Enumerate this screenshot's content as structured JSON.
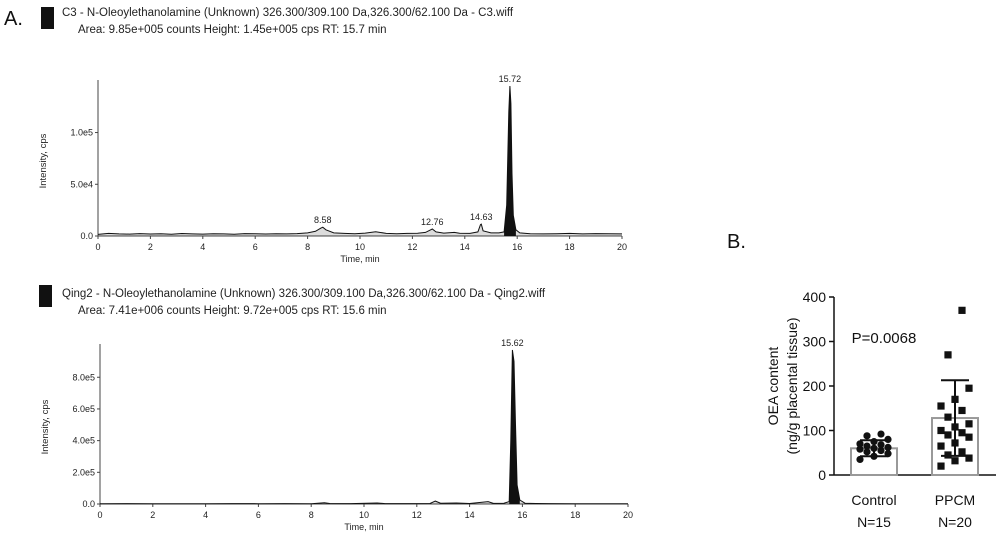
{
  "panel_a_label": "A.",
  "panel_b_label": "B.",
  "colors": {
    "trace": "#111111",
    "axis": "#444444",
    "bar_fill": "#ffffff",
    "bar_stroke": "#999999",
    "marker": "#111111"
  },
  "chart_data": [
    {
      "type": "line",
      "name": "Chromatogram C3",
      "header_title": "C3 - N-Oleoylethanolamine (Unknown) 326.300/309.100 Da,326.300/62.100 Da - C3.wiff",
      "header_sub": "Area: 9.85e+005 counts  Height: 1.45e+005 cps  RT: 15.7 min",
      "xlabel": "Time, min",
      "ylabel": "Intensity, cps",
      "xlim": [
        0,
        20
      ],
      "ylim": [
        0,
        145000
      ],
      "xticks": [
        "0",
        "2",
        "4",
        "6",
        "8",
        "10",
        "12",
        "14",
        "16",
        "18",
        "20"
      ],
      "yticks": [
        {
          "value": 0,
          "label": "0.0"
        },
        {
          "value": 50000,
          "label": "5.0e4"
        },
        {
          "value": 100000,
          "label": "1.0e5"
        }
      ],
      "baseline": [
        [
          0,
          1500
        ],
        [
          0.4,
          2500
        ],
        [
          0.8,
          2000
        ],
        [
          1.2,
          1800
        ],
        [
          1.6,
          2300
        ],
        [
          2.0,
          1900
        ],
        [
          2.4,
          2100
        ],
        [
          2.8,
          1700
        ],
        [
          3.2,
          2400
        ],
        [
          3.6,
          2000
        ],
        [
          4.0,
          1800
        ],
        [
          4.4,
          2200
        ],
        [
          4.8,
          2000
        ],
        [
          5.2,
          1700
        ],
        [
          5.6,
          2300
        ],
        [
          6.0,
          2100
        ],
        [
          6.4,
          1900
        ],
        [
          6.8,
          2200
        ],
        [
          7.2,
          2000
        ],
        [
          7.6,
          2300
        ],
        [
          8.0,
          3000
        ],
        [
          8.3,
          4500
        ],
        [
          8.5,
          7500
        ],
        [
          8.58,
          8500
        ],
        [
          8.7,
          6000
        ],
        [
          9.0,
          3000
        ],
        [
          9.4,
          2500
        ],
        [
          9.8,
          2200
        ],
        [
          10.2,
          2800
        ],
        [
          10.6,
          4200
        ],
        [
          11.0,
          2500
        ],
        [
          11.4,
          2200
        ],
        [
          11.8,
          2500
        ],
        [
          12.2,
          2600
        ],
        [
          12.5,
          3500
        ],
        [
          12.7,
          6000
        ],
        [
          12.76,
          6800
        ],
        [
          12.9,
          4000
        ],
        [
          13.2,
          2800
        ],
        [
          13.6,
          3500
        ],
        [
          13.8,
          2600
        ],
        [
          14.2,
          2500
        ],
        [
          14.5,
          4000
        ],
        [
          14.6,
          11000
        ],
        [
          14.63,
          11500
        ],
        [
          14.7,
          5000
        ],
        [
          15.0,
          3000
        ],
        [
          15.3,
          3000
        ],
        [
          15.5,
          4000
        ],
        [
          15.6,
          30000
        ],
        [
          15.68,
          120000
        ],
        [
          15.72,
          145000
        ],
        [
          15.76,
          128000
        ],
        [
          15.8,
          60000
        ],
        [
          15.85,
          20000
        ],
        [
          15.95,
          6000
        ],
        [
          16.1,
          3000
        ],
        [
          16.5,
          2200
        ],
        [
          17.0,
          2000
        ],
        [
          17.5,
          2200
        ],
        [
          18.0,
          2500
        ],
        [
          18.5,
          2000
        ],
        [
          19.0,
          2300
        ],
        [
          19.5,
          2100
        ],
        [
          20,
          2000
        ]
      ],
      "peak_labels": [
        {
          "x": 8.58,
          "y": 8500,
          "label": "8.58"
        },
        {
          "x": 12.76,
          "y": 6800,
          "label": "12.76"
        },
        {
          "x": 14.63,
          "y": 11500,
          "label": "14.63"
        },
        {
          "x": 15.72,
          "y": 145000,
          "label": "15.72"
        }
      ]
    },
    {
      "type": "line",
      "name": "Chromatogram Qing2",
      "header_title": "Qing2 - N-Oleoylethanolamine (Unknown) 326.300/309.100 Da,326.300/62.100 Da - Qing2.wiff",
      "header_sub": "Area: 7.41e+006 counts  Height: 9.72e+005 cps  RT: 15.6 min",
      "xlabel": "Time, min",
      "ylabel": "Intensity, cps",
      "xlim": [
        0,
        20
      ],
      "ylim": [
        0,
        972000
      ],
      "xticks": [
        "0",
        "2",
        "4",
        "6",
        "8",
        "10",
        "12",
        "14",
        "16",
        "18",
        "20"
      ],
      "yticks": [
        {
          "value": 0,
          "label": "0.0"
        },
        {
          "value": 200000,
          "label": "2.0e5"
        },
        {
          "value": 400000,
          "label": "4.0e5"
        },
        {
          "value": 600000,
          "label": "6.0e5"
        },
        {
          "value": 800000,
          "label": "8.0e5"
        }
      ],
      "baseline": [
        [
          0,
          2000
        ],
        [
          1,
          2500
        ],
        [
          2,
          2000
        ],
        [
          3,
          2200
        ],
        [
          4,
          2000
        ],
        [
          5,
          2300
        ],
        [
          6,
          2000
        ],
        [
          7,
          2400
        ],
        [
          8,
          2200
        ],
        [
          8.5,
          8000
        ],
        [
          8.7,
          3000
        ],
        [
          9.5,
          2500
        ],
        [
          10.5,
          6000
        ],
        [
          10.8,
          2500
        ],
        [
          11.5,
          2500
        ],
        [
          12.5,
          3000
        ],
        [
          12.7,
          18000
        ],
        [
          12.9,
          5000
        ],
        [
          13.5,
          6000
        ],
        [
          14.0,
          3000
        ],
        [
          14.7,
          15000
        ],
        [
          14.9,
          4000
        ],
        [
          15.3,
          5000
        ],
        [
          15.5,
          15000
        ],
        [
          15.56,
          400000
        ],
        [
          15.62,
          972000
        ],
        [
          15.68,
          900000
        ],
        [
          15.74,
          500000
        ],
        [
          15.8,
          120000
        ],
        [
          15.9,
          25000
        ],
        [
          16.1,
          5000
        ],
        [
          16.5,
          3000
        ],
        [
          17,
          2500
        ],
        [
          18,
          2000
        ],
        [
          19,
          2200
        ],
        [
          20,
          2000
        ]
      ],
      "peak_labels": [
        {
          "x": 15.62,
          "y": 972000,
          "label": "15.62"
        }
      ]
    },
    {
      "type": "bar",
      "name": "OEA content",
      "ylabel_line1": "OEA  content",
      "ylabel_line2": "(ng/g placental tissue)",
      "ylim": [
        0,
        400
      ],
      "yticks": [
        "0",
        "100",
        "200",
        "300",
        "400"
      ],
      "annotation": "P=0.0068",
      "categories": [
        "Control",
        "PPCM"
      ],
      "category_n": [
        "N=15",
        "N=20"
      ],
      "means": [
        60,
        128
      ],
      "sd": [
        18,
        85
      ],
      "points": [
        [
          35,
          42,
          48,
          52,
          55,
          58,
          60,
          62,
          65,
          68,
          70,
          75,
          80,
          88,
          92
        ],
        [
          20,
          32,
          38,
          45,
          52,
          65,
          72,
          85,
          90,
          95,
          100,
          108,
          115,
          130,
          145,
          155,
          170,
          195,
          270,
          370
        ]
      ]
    }
  ]
}
